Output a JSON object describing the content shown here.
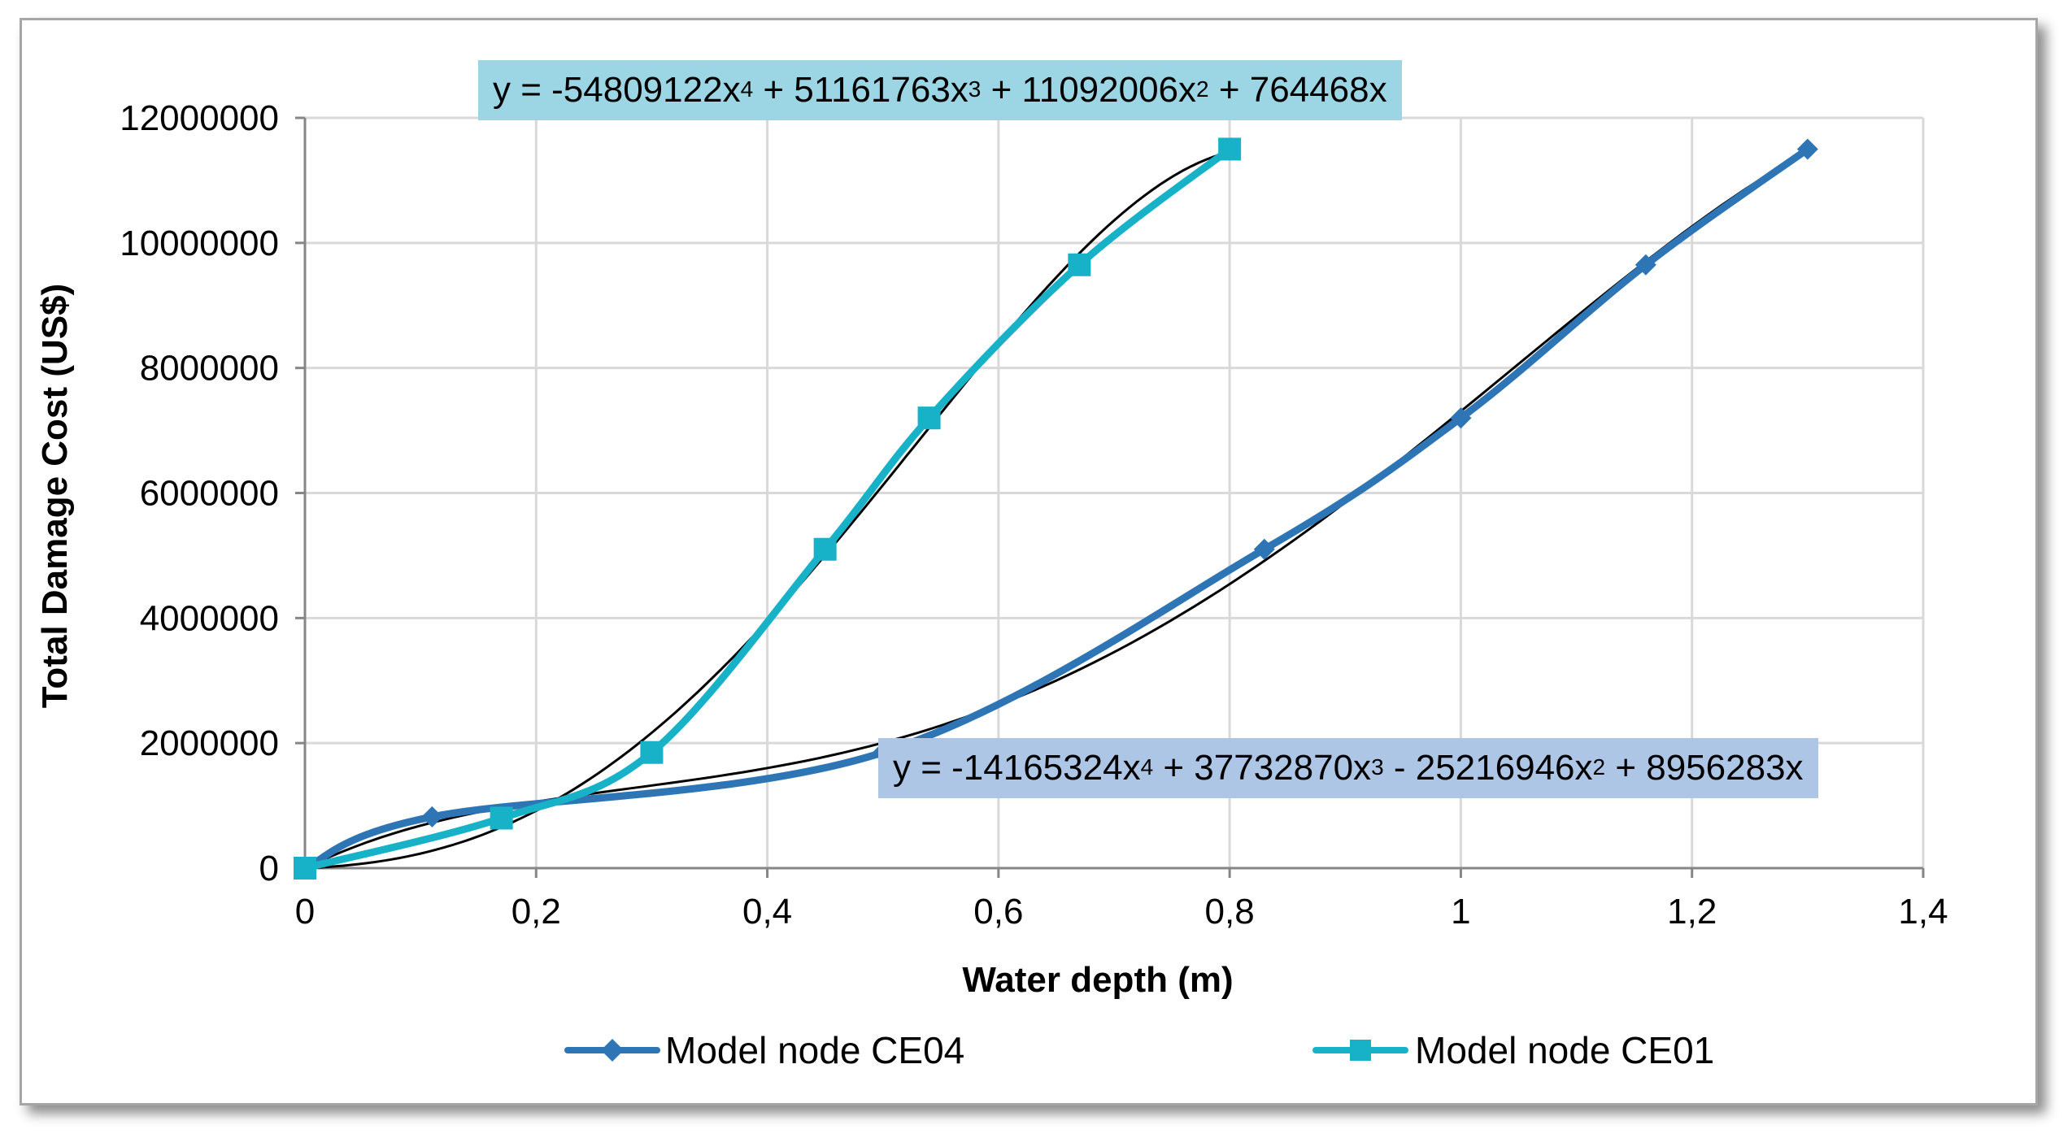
{
  "chart_data": {
    "type": "line",
    "title": "",
    "xlabel": "Water depth (m)",
    "ylabel": "Total Damage Cost (US$)",
    "xlim": [
      0,
      1.4
    ],
    "ylim": [
      0,
      12000000
    ],
    "grid": true,
    "legend_position": "bottom",
    "x_tick_labels": [
      "0",
      "0,2",
      "0,4",
      "0,6",
      "0,8",
      "1",
      "1,2",
      "1,4"
    ],
    "y_tick_labels": [
      "0",
      "2000000",
      "4000000",
      "6000000",
      "8000000",
      "10000000",
      "12000000"
    ],
    "series": [
      {
        "name": "Model node CE04",
        "color": "#2e75b6",
        "marker": "diamond",
        "x": [
          0,
          0.11,
          0.5,
          0.83,
          1.0,
          1.16,
          1.3
        ],
        "y": [
          0,
          820000,
          1850000,
          5100000,
          7200000,
          9650000,
          11500000
        ],
        "trendline": {
          "equation_parts": [
            "y = -14165324x",
            "4",
            " + 37732870x",
            "3",
            " - 25216946x",
            "2",
            " + 8956283x"
          ],
          "coefficients": [
            -14165324,
            37732870,
            -25216946,
            8956283
          ],
          "x_range": [
            0,
            1.3
          ],
          "box_color": "#adc6e5"
        }
      },
      {
        "name": "Model node CE01",
        "color": "#17b1c8",
        "marker": "square",
        "x": [
          0,
          0.17,
          0.3,
          0.45,
          0.54,
          0.67,
          0.8
        ],
        "y": [
          0,
          800000,
          1850000,
          5100000,
          7200000,
          9650000,
          11500000
        ],
        "trendline": {
          "equation_parts": [
            "y = -54809122x",
            "4",
            " + 51161763x",
            "3",
            " + 11092006x",
            "2",
            " + 764468x"
          ],
          "coefficients": [
            -54809122,
            51161763,
            11092006,
            764468
          ],
          "x_range": [
            0,
            0.8
          ],
          "box_color": "#9cd6e4"
        }
      }
    ]
  }
}
